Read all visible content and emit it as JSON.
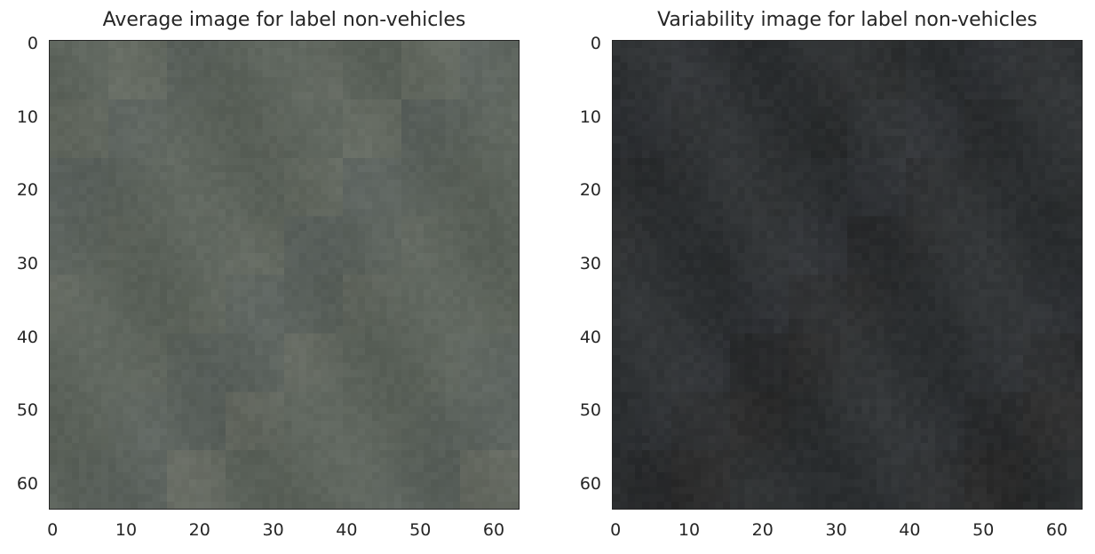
{
  "chart_data": [
    {
      "type": "heatmap",
      "title": "Average image for label non-vehicles",
      "xticks": [
        "0",
        "10",
        "20",
        "30",
        "40",
        "50",
        "60"
      ],
      "yticks": [
        "0",
        "10",
        "20",
        "30",
        "40",
        "50",
        "60"
      ],
      "xlim": [
        -0.5,
        63.5
      ],
      "ylim": [
        63.5,
        -0.5
      ],
      "image_size": [
        64,
        64
      ],
      "grid": false,
      "color_tones": [
        "#5d645c",
        "#6a6f65",
        "#5b6261",
        "#575e5c",
        "#6d6f66"
      ]
    },
    {
      "type": "heatmap",
      "title": "Variability image for label non-vehicles",
      "xticks": [
        "0",
        "10",
        "20",
        "30",
        "40",
        "50",
        "60"
      ],
      "yticks": [
        "0",
        "10",
        "20",
        "30",
        "40",
        "50",
        "60"
      ],
      "xlim": [
        -0.5,
        63.5
      ],
      "ylim": [
        63.5,
        -0.5
      ],
      "image_size": [
        64,
        64
      ],
      "grid": false,
      "color_tones": [
        "#2f3234",
        "#33353a",
        "#2a2a2b",
        "#2b2826",
        "#262726"
      ]
    }
  ]
}
